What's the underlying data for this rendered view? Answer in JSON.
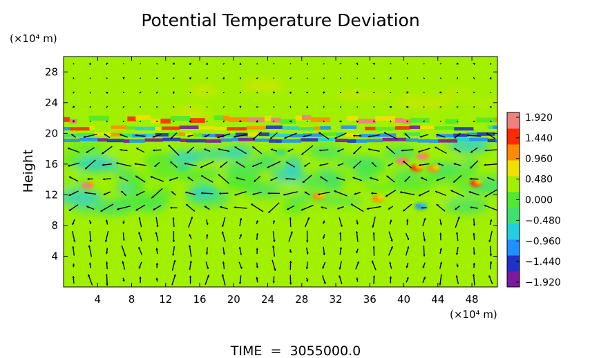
{
  "chart_data": {
    "type": "heatmap",
    "title": "Potential Temperature Deviation",
    "ylabel": "Height",
    "x_unit_label": "(×10⁴ m)",
    "y_unit_label": "(×10⁴ m)",
    "x_ticks": [
      "4",
      "8",
      "12",
      "16",
      "20",
      "24",
      "28",
      "32",
      "36",
      "40",
      "44",
      "48"
    ],
    "y_ticks": [
      "4",
      "8",
      "12",
      "16",
      "20",
      "24",
      "28"
    ],
    "x_range": [
      0,
      51
    ],
    "y_range": [
      0,
      30
    ],
    "colorbar": {
      "labels": [
        "1.920",
        "1.440",
        "0.960",
        "0.480",
        "0.000",
        "−0.480",
        "−0.960",
        "−1.440",
        "−1.920"
      ],
      "min": -1.92,
      "max": 1.92,
      "colors": [
        "#7a1a9e",
        "#2030c8",
        "#1e90ff",
        "#20d0e0",
        "#40e070",
        "#50e830",
        "#a0f000",
        "#f0e000",
        "#ff8c00",
        "#ff2a00",
        "#f08080"
      ]
    },
    "background_value": 0.2,
    "bands": [
      {
        "y": 21.8,
        "pattern": "wavy",
        "min": -0.5,
        "max": 1.9
      },
      {
        "y": 20.7,
        "pattern": "stripe",
        "min": -1.9,
        "max": 1.6
      },
      {
        "y": 19.8,
        "pattern": "stripe",
        "min": -1.6,
        "max": 1.2
      },
      {
        "y": 19.1,
        "pattern": "stripe",
        "min": -1.9,
        "max": -0.8
      }
    ],
    "features": [
      {
        "x": 2.8,
        "y": 13.2,
        "value": 1.9
      },
      {
        "x": 39.8,
        "y": 16.4,
        "value": 1.9
      },
      {
        "x": 42.2,
        "y": 17.0,
        "value": 1.9
      },
      {
        "x": 41.5,
        "y": 15.5,
        "value": 1.4
      },
      {
        "x": 43.5,
        "y": 15.4,
        "value": 1.2
      },
      {
        "x": 48.5,
        "y": 13.5,
        "value": 1.4
      },
      {
        "x": 37.0,
        "y": 11.5,
        "value": 1.0
      },
      {
        "x": 30.0,
        "y": 11.8,
        "value": 0.9
      },
      {
        "x": 42.0,
        "y": 10.5,
        "value": -0.9
      },
      {
        "x": 25.5,
        "y": 17.5,
        "value": -0.5
      },
      {
        "x": 14.0,
        "y": 15.5,
        "value": -0.4
      }
    ],
    "vector_field": "wind arrows",
    "annotation": "TIME  =  3055000.0"
  }
}
